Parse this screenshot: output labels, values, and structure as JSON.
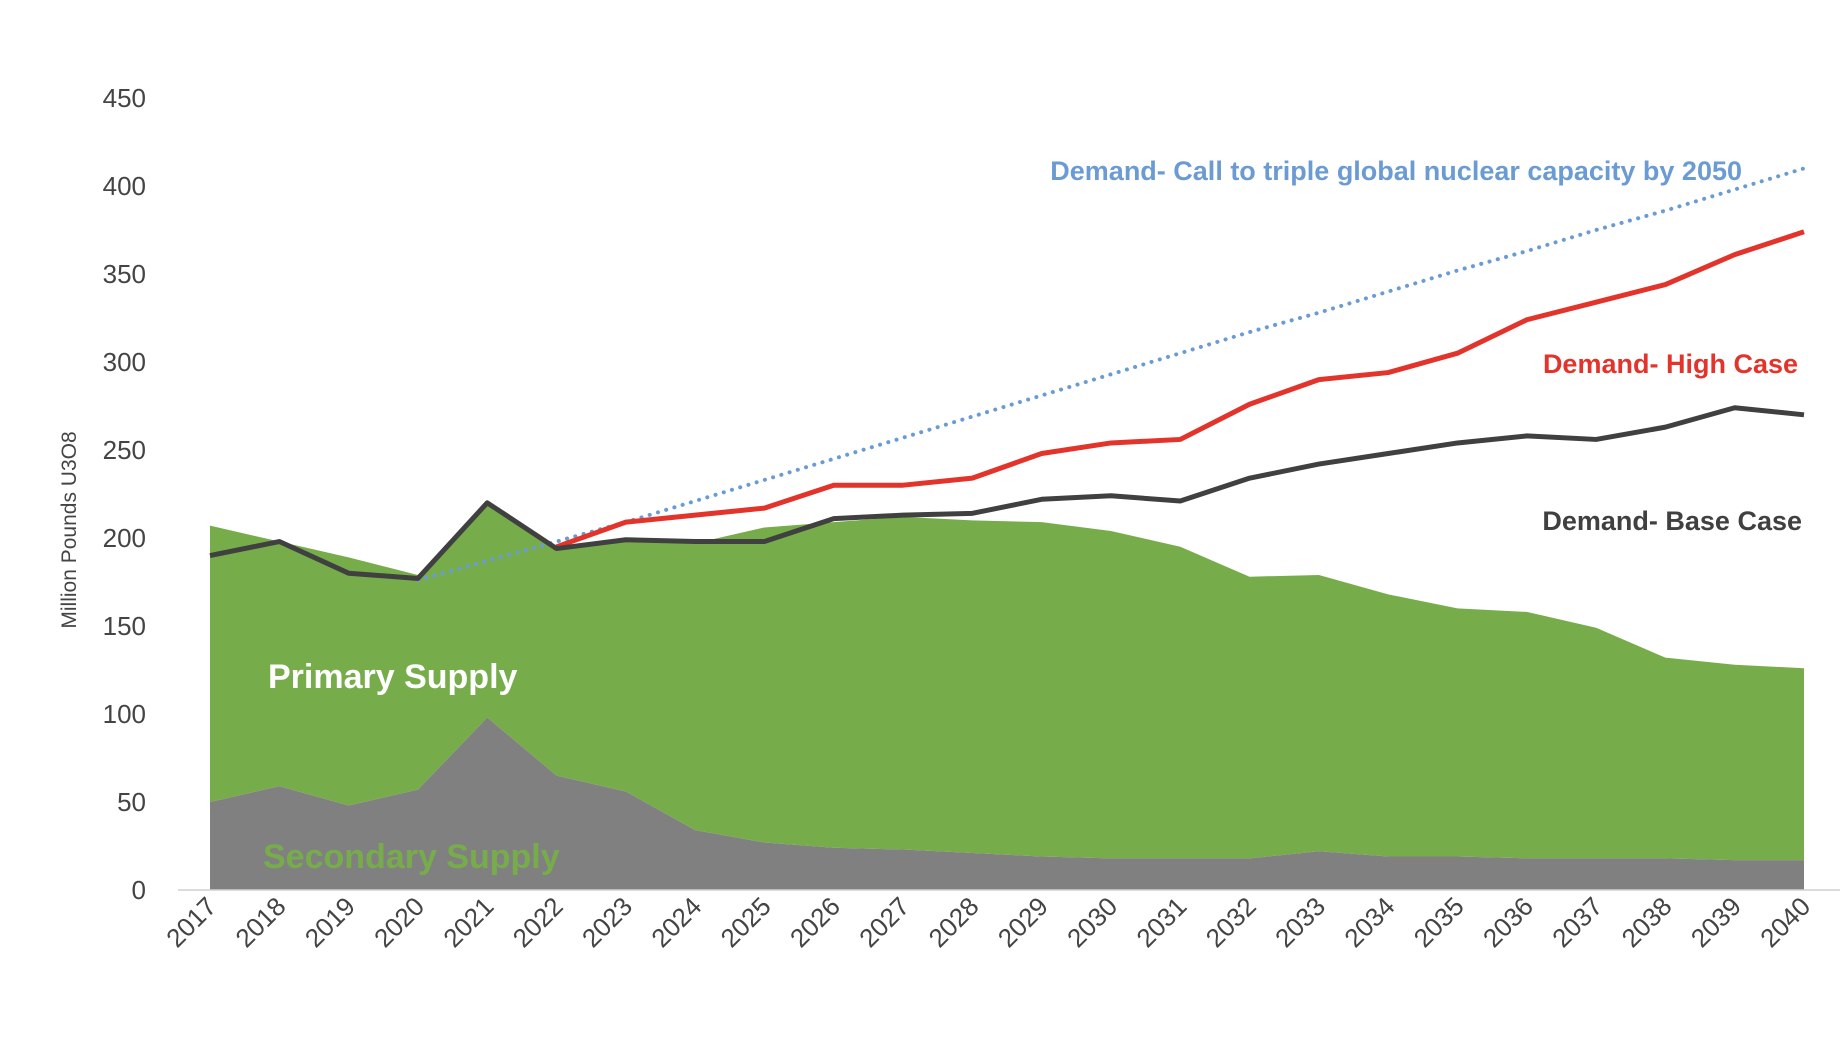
{
  "chart_data": {
    "type": "area",
    "title": "",
    "xlabel": "",
    "ylabel": "Million Pounds U3O8",
    "ylim": [
      0,
      450
    ],
    "yticks": [
      "0",
      "50",
      "100",
      "150",
      "200",
      "250",
      "300",
      "350",
      "400",
      "450"
    ],
    "grid": false,
    "categories": [
      "2017",
      "2018",
      "2019",
      "2020",
      "2021",
      "2022",
      "2023",
      "2024",
      "2025",
      "2026",
      "2027",
      "2028",
      "2029",
      "2030",
      "2031",
      "2032",
      "2033",
      "2034",
      "2035",
      "2036",
      "2037",
      "2038",
      "2039",
      "2040"
    ],
    "series": [
      {
        "name": "Secondary Supply",
        "kind": "area",
        "color": "#808080",
        "label_color": "#76ad4a",
        "values": [
          50,
          59,
          48,
          57,
          98,
          65,
          56,
          34,
          27,
          24,
          23,
          21,
          19,
          18,
          18,
          18,
          22,
          19,
          19,
          18,
          18,
          18,
          17,
          17
        ]
      },
      {
        "name": "Primary Supply",
        "kind": "area",
        "color": "#76ad4a",
        "label_color": "#ffffff",
        "values": [
          157,
          139,
          141,
          122,
          121,
          128,
          142,
          163,
          179,
          185,
          189,
          189,
          190,
          186,
          177,
          160,
          157,
          149,
          141,
          140,
          131,
          114,
          111,
          109
        ]
      },
      {
        "name": "Demand- Base Case",
        "kind": "line",
        "color": "#404040",
        "label_color": "#404040",
        "values": [
          190,
          198,
          180,
          177,
          220,
          194,
          199,
          198,
          198,
          211,
          213,
          214,
          222,
          224,
          221,
          234,
          242,
          248,
          254,
          258,
          256,
          263,
          274,
          270
        ]
      },
      {
        "name": "Demand- High Case",
        "kind": "line",
        "color": "#e3342b",
        "label_color": "#e3342b",
        "start_index": 5,
        "values": [
          null,
          null,
          null,
          null,
          null,
          195,
          209,
          213,
          217,
          230,
          230,
          234,
          248,
          254,
          256,
          276,
          290,
          294,
          305,
          324,
          334,
          344,
          361,
          374
        ]
      },
      {
        "name": "Demand- Call to triple global nuclear capacity by 2050",
        "kind": "dotted-line",
        "color": "#6b9bd3",
        "label_color": "#6b9bd3",
        "start_index": 3,
        "values": [
          null,
          null,
          null,
          176,
          187,
          198,
          209,
          221,
          233,
          245,
          257,
          269,
          281,
          293,
          305,
          317,
          328,
          340,
          352,
          363,
          375,
          386,
          398,
          410
        ]
      }
    ]
  }
}
